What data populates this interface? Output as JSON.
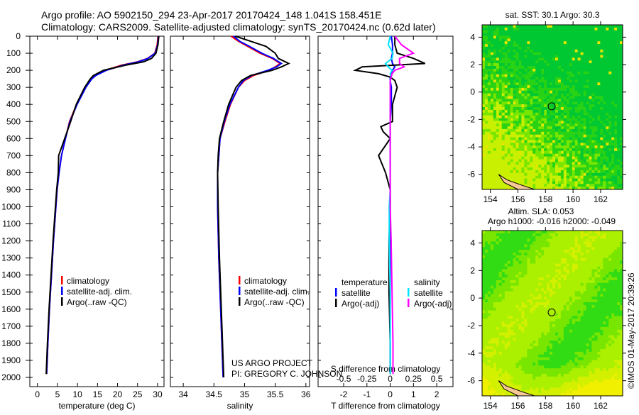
{
  "header": {
    "line1": "Argo profile: AO 5902150_294 23-Apr-2017 20170424_148 1.041S 158.451E",
    "line2": "Climatology: CARS2009. Satellite-adjusted climatology: synTS_20170424.nc (0.62d later)"
  },
  "credit": {
    "line1": "US ARGO PROJECT",
    "line2": "PI: GREGORY C. JOHNSON"
  },
  "copyright": "©IMOS 01-May-2017 20:39:26",
  "colors": {
    "clim": "#ff0000",
    "sat": "#0000ff",
    "argo": "#000000",
    "sal_sat": "#00e5ff",
    "sal_argo": "#ff00ff"
  },
  "chart_data": [
    {
      "type": "line",
      "title": "",
      "xlabel": "temperature (deg C)",
      "ylabel": "",
      "xlim": [
        -1.9,
        31.6
      ],
      "ylim": [
        2000,
        0
      ],
      "xticks": [
        0,
        5,
        10,
        15,
        20,
        25,
        30
      ],
      "yticks": [
        0,
        100,
        200,
        300,
        400,
        500,
        600,
        700,
        800,
        900,
        1000,
        1100,
        1200,
        1300,
        1400,
        1500,
        1600,
        1700,
        1800,
        1900,
        2000
      ],
      "legend": [
        "climatology",
        "satellite-adj. clim.",
        "Argo(..raw -QC)"
      ],
      "legend_placement": "lower-left",
      "depth": [
        0,
        50,
        100,
        130,
        150,
        170,
        200,
        230,
        250,
        300,
        400,
        500,
        600,
        700,
        800,
        900,
        1000,
        1200,
        1400,
        1600,
        1800,
        1980
      ],
      "series": [
        {
          "name": "climatology",
          "values": [
            30.1,
            29.9,
            29.3,
            27.5,
            25,
            21,
            17,
            14.5,
            13.5,
            12,
            9.8,
            8,
            7,
            6,
            5.4,
            4.9,
            4.6,
            4,
            3.5,
            3,
            2.6,
            2.3
          ]
        },
        {
          "name": "satellite-adj. clim.",
          "values": [
            30.2,
            30,
            29.4,
            27.6,
            25.2,
            21.4,
            17.2,
            14.6,
            13.6,
            12.1,
            9.9,
            8.1,
            7,
            6,
            5.4,
            4.9,
            4.6,
            4,
            3.5,
            3,
            2.6,
            2.3
          ]
        },
        {
          "name": "Argo(..raw -QC)",
          "values": [
            30.3,
            30.1,
            29.6,
            28.5,
            26.5,
            22,
            16.5,
            14,
            13.2,
            11.8,
            9.7,
            8.3,
            6.8,
            5.3,
            5.2,
            4.8,
            4.5,
            3.9,
            3.4,
            2.9,
            2.5,
            2.2
          ]
        }
      ]
    },
    {
      "type": "line",
      "xlabel": "salinity",
      "xlim": [
        33.79,
        36.06
      ],
      "ylim": [
        2000,
        0
      ],
      "xticks": [
        34,
        34.5,
        35,
        35.5,
        36
      ],
      "legend": [
        "climatology",
        "satellite-adj. clim.",
        "Argo(..raw -QC)"
      ],
      "legend_placement": "lower-right",
      "depth": [
        0,
        30,
        60,
        100,
        130,
        160,
        180,
        200,
        230,
        260,
        300,
        400,
        500,
        600,
        700,
        800,
        1000,
        1300,
        1600,
        2000
      ],
      "series": [
        {
          "name": "climatology",
          "values": [
            34.78,
            34.9,
            35.05,
            35.25,
            35.45,
            35.58,
            35.5,
            35.4,
            35.15,
            35.0,
            34.9,
            34.77,
            34.68,
            34.6,
            34.58,
            34.56,
            34.56,
            34.58,
            34.61,
            34.65
          ]
        },
        {
          "name": "satellite-adj. clim.",
          "values": [
            34.82,
            34.92,
            35.08,
            35.28,
            35.47,
            35.6,
            35.52,
            35.38,
            35.12,
            34.98,
            34.9,
            34.76,
            34.67,
            34.6,
            34.58,
            34.56,
            34.56,
            34.58,
            34.61,
            34.65
          ]
        },
        {
          "name": "Argo(..raw -QC)",
          "values": [
            34.85,
            35.1,
            35.35,
            35.5,
            35.55,
            35.72,
            35.6,
            35.45,
            35.1,
            34.95,
            34.86,
            34.74,
            34.66,
            34.59,
            34.57,
            34.56,
            34.57,
            34.59,
            34.62,
            34.66
          ]
        }
      ]
    },
    {
      "type": "line",
      "xlabel": "T difference from climatology",
      "x2label": "S difference from climatology",
      "xlim": [
        -3.1,
        2.7
      ],
      "x2lim": [
        -0.775,
        0.675
      ],
      "ylim": [
        2000,
        0
      ],
      "xticks": [
        -2,
        -1,
        0,
        1,
        2
      ],
      "x2ticks": [
        -0.5,
        -0.25,
        0,
        0.25,
        0.5
      ],
      "x2ticklabels": [
        "-0.5",
        "-0.25",
        "0",
        "0.25",
        "0.5"
      ],
      "legend_groups": [
        {
          "title": "temperature",
          "items": [
            "satellite",
            "Argo(-adj)"
          ]
        },
        {
          "title": "salinity",
          "items": [
            "satellite",
            "Argo(-adj)"
          ]
        }
      ],
      "depth": [
        0,
        50,
        100,
        130,
        160,
        180,
        200,
        220,
        240,
        260,
        300,
        400,
        500,
        530,
        560,
        600,
        700,
        800,
        900,
        1000,
        1200,
        1500,
        1800,
        1980
      ],
      "series": [
        {
          "name": "temperature satellite",
          "axis": "T",
          "values": [
            0.05,
            0.1,
            0.1,
            0.05,
            0.1,
            0.2,
            0.1,
            0.05,
            0,
            0,
            0.05,
            0.05,
            0,
            0,
            0,
            0,
            0,
            0,
            0,
            0,
            0,
            0,
            0,
            0
          ]
        },
        {
          "name": "temperature Argo(-adj)",
          "axis": "T",
          "values": [
            0.2,
            0.2,
            0.3,
            1.0,
            1.5,
            -1.2,
            -1.5,
            -0.5,
            0,
            0.2,
            0.3,
            0.1,
            0.1,
            -0.4,
            -0.3,
            0,
            -0.5,
            -0.2,
            0,
            0,
            -0.05,
            -0.05,
            0,
            0
          ]
        },
        {
          "name": "salinity satellite",
          "axis": "S",
          "values": [
            0,
            -0.02,
            0.03,
            0.02,
            -0.05,
            -0.02,
            0.02,
            0,
            0.01,
            0,
            0,
            0,
            0,
            0,
            0,
            0,
            0,
            0,
            0,
            -0.01,
            -0.01,
            0,
            0,
            0
          ]
        },
        {
          "name": "salinity Argo(-adj)",
          "axis": "S",
          "values": [
            0.05,
            0.12,
            0.25,
            0.1,
            0.1,
            0.15,
            0.05,
            0.02,
            0.01,
            0,
            0,
            0,
            0,
            0,
            0,
            0,
            0,
            0,
            0,
            0,
            0.01,
            0.02,
            0.03,
            0.03
          ]
        }
      ]
    },
    {
      "type": "heatmap",
      "title": "sat. SST: 30.1 Argo: 30.3",
      "xlim": [
        153.4,
        163.6
      ],
      "ylim": [
        -7.1,
        4.9
      ],
      "xticks": [
        154,
        156,
        158,
        160,
        162
      ],
      "yticks": [
        4,
        2,
        0,
        -2,
        -4,
        -6
      ],
      "marker": {
        "lon": 158.45,
        "lat": -1.04
      }
    },
    {
      "type": "heatmap",
      "title": "Altim. SLA: 0.053",
      "subtitle": "Argo h1000: -0.016 h2000: -0.049",
      "xlim": [
        153.4,
        163.6
      ],
      "ylim": [
        -7.1,
        4.9
      ],
      "xticks": [
        154,
        156,
        158,
        160,
        162
      ],
      "yticks": [
        4,
        2,
        0,
        -2,
        -4,
        -6
      ],
      "marker": {
        "lon": 158.45,
        "lat": -1.04
      }
    }
  ]
}
